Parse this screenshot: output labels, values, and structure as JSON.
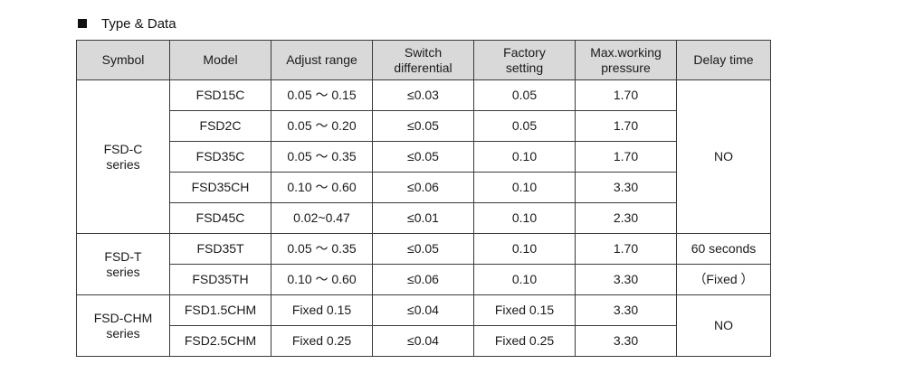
{
  "section": {
    "title": "Type & Data"
  },
  "table": {
    "headers": {
      "symbol": "Symbol",
      "model": "Model",
      "adjust_range": "Adjust range",
      "switch_differential": {
        "line1": "Switch",
        "line2": "differential"
      },
      "factory_setting": {
        "line1": "Factory",
        "line2": "setting"
      },
      "max_pressure": {
        "line1": "Max.working",
        "line2": "pressure"
      },
      "delay_time": "Delay time"
    },
    "groups": {
      "fsd_c": {
        "symbol": {
          "line1": "FSD-C",
          "line2": "series"
        },
        "delay": "NO",
        "rows": [
          {
            "model": "FSD15C",
            "range": "0.05 〜 0.15",
            "diff": "≤0.03",
            "factory": "0.05",
            "pressure": "1.70"
          },
          {
            "model": "FSD2C",
            "range": "0.05 〜 0.20",
            "diff": "≤0.05",
            "factory": "0.05",
            "pressure": "1.70"
          },
          {
            "model": "FSD35C",
            "range": "0.05 〜 0.35",
            "diff": "≤0.05",
            "factory": "0.10",
            "pressure": "1.70"
          },
          {
            "model": "FSD35CH",
            "range": "0.10 〜 0.60",
            "diff": "≤0.06",
            "factory": "0.10",
            "pressure": "3.30"
          },
          {
            "model": "FSD45C",
            "range": "0.02~0.47",
            "diff": "≤0.01",
            "factory": "0.10",
            "pressure": "2.30"
          }
        ]
      },
      "fsd_t": {
        "symbol": {
          "line1": "FSD-T",
          "line2": "series"
        },
        "delay": {
          "line1": "60 seconds",
          "line2": "（Fixed ）"
        },
        "rows": [
          {
            "model": "FSD35T",
            "range": "0.05 〜 0.35",
            "diff": "≤0.05",
            "factory": "0.10",
            "pressure": "1.70"
          },
          {
            "model": "FSD35TH",
            "range": "0.10 〜 0.60",
            "diff": "≤0.06",
            "factory": "0.10",
            "pressure": "3.30"
          }
        ]
      },
      "fsd_chm": {
        "symbol": {
          "line1": "FSD-CHM",
          "line2": "series"
        },
        "delay": "NO",
        "rows": [
          {
            "model": "FSD1.5CHM",
            "range": "Fixed 0.15",
            "diff": "≤0.04",
            "factory": "Fixed 0.15",
            "pressure": "3.30"
          },
          {
            "model": "FSD2.5CHM",
            "range": "Fixed 0.25",
            "diff": "≤0.04",
            "factory": "Fixed 0.25",
            "pressure": "3.30"
          }
        ]
      }
    }
  }
}
